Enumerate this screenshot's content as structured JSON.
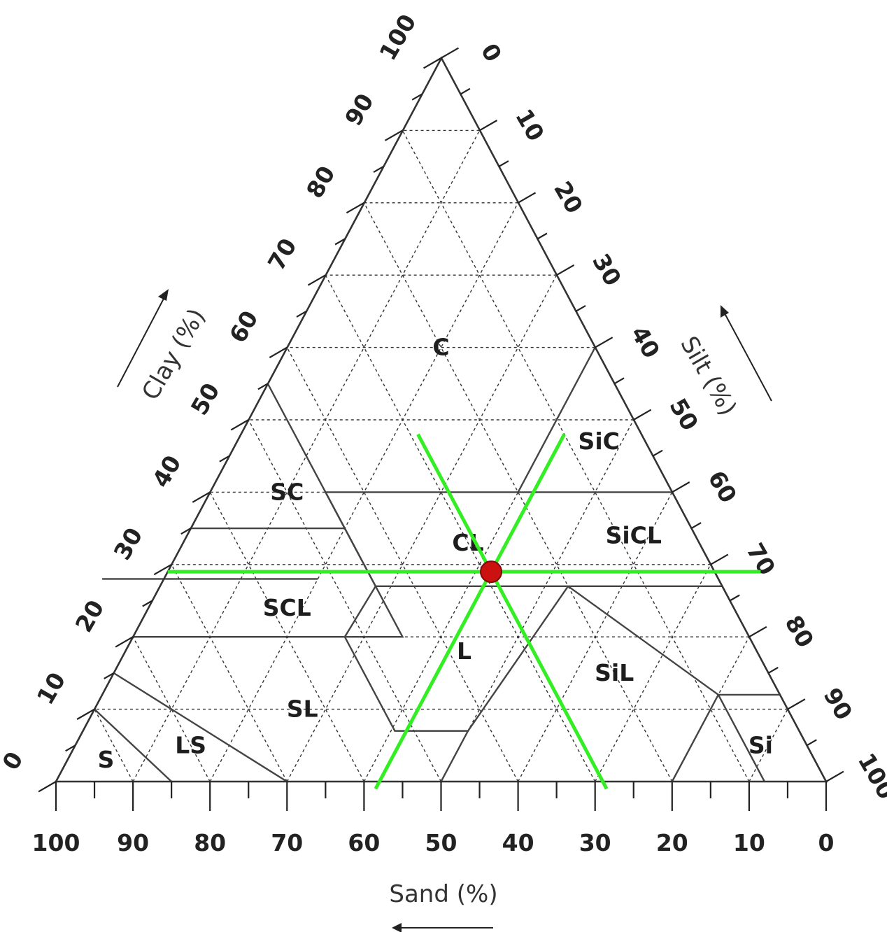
{
  "chart_data": {
    "type": "ternary",
    "axes": {
      "clay": {
        "label": "Clay (%)",
        "ticks": [
          "0",
          "10",
          "20",
          "30",
          "40",
          "50",
          "60",
          "70",
          "80",
          "90",
          "100"
        ]
      },
      "silt": {
        "label": "Silt (%)",
        "ticks": [
          "0",
          "10",
          "20",
          "30",
          "40",
          "50",
          "60",
          "70",
          "80",
          "90",
          "100"
        ]
      },
      "sand": {
        "label": "Sand (%)",
        "ticks": [
          "100",
          "90",
          "80",
          "70",
          "60",
          "50",
          "40",
          "30",
          "20",
          "10",
          "0"
        ]
      }
    },
    "grid_step": 10,
    "classes": [
      {
        "label": "C",
        "clay": 60,
        "sand": 20
      },
      {
        "label": "SiC",
        "clay": 47,
        "sand": 6
      },
      {
        "label": "SC",
        "clay": 40,
        "sand": 50
      },
      {
        "label": "CL",
        "clay": 33,
        "sand": 30
      },
      {
        "label": "SiCL",
        "clay": 34,
        "sand": 8
      },
      {
        "label": "SCL",
        "clay": 24,
        "sand": 58
      },
      {
        "label": "L",
        "clay": 18,
        "sand": 38
      },
      {
        "label": "SiL",
        "clay": 15,
        "sand": 20
      },
      {
        "label": "SL",
        "clay": 10,
        "sand": 63
      },
      {
        "label": "LS",
        "clay": 5,
        "sand": 80
      },
      {
        "label": "S",
        "clay": 3,
        "sand": 92
      },
      {
        "label": "Si",
        "clay": 5,
        "sand": 6
      }
    ],
    "sample_point": {
      "clay": 29,
      "silt": 42,
      "sand": 29,
      "color": "#cc1111"
    },
    "guide_color": "#33ee22"
  }
}
